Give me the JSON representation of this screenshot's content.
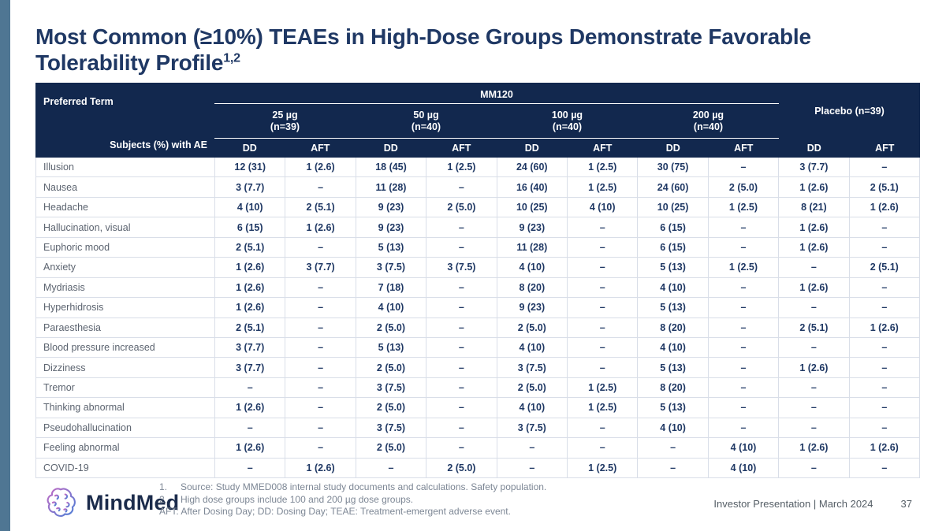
{
  "slide": {
    "title_line1": "Most Common (≥10%) TEAEs in High-Dose Groups Demonstrate Favorable",
    "title_line2": "Tolerability Profile",
    "title_superscript": "1,2"
  },
  "table": {
    "header": {
      "preferred_term_label": "Preferred Term",
      "subjects_label": "Subjects (%) with AE",
      "group_label": "MM120",
      "placebo_label": "Placebo (n=39)",
      "dose_groups": [
        {
          "dose": "25 µg",
          "n": "(n=39)"
        },
        {
          "dose": "50 µg",
          "n": "(n=40)"
        },
        {
          "dose": "100 µg",
          "n": "(n=40)"
        },
        {
          "dose": "200 µg",
          "n": "(n=40)"
        }
      ],
      "day_columns": [
        "DD",
        "AFT"
      ]
    },
    "rows": [
      {
        "term": "Illusion",
        "values": [
          "12 (31)",
          "1 (2.6)",
          "18 (45)",
          "1 (2.5)",
          "24 (60)",
          "1 (2.5)",
          "30 (75)",
          "–",
          "3 (7.7)",
          "–"
        ]
      },
      {
        "term": "Nausea",
        "values": [
          "3 (7.7)",
          "–",
          "11 (28)",
          "–",
          "16 (40)",
          "1 (2.5)",
          "24 (60)",
          "2 (5.0)",
          "1 (2.6)",
          "2 (5.1)"
        ]
      },
      {
        "term": "Headache",
        "values": [
          "4 (10)",
          "2 (5.1)",
          "9 (23)",
          "2 (5.0)",
          "10 (25)",
          "4 (10)",
          "10 (25)",
          "1 (2.5)",
          "8 (21)",
          "1 (2.6)"
        ]
      },
      {
        "term": "Hallucination, visual",
        "values": [
          "6 (15)",
          "1 (2.6)",
          "9 (23)",
          "–",
          "9 (23)",
          "–",
          "6 (15)",
          "–",
          "1 (2.6)",
          "–"
        ]
      },
      {
        "term": "Euphoric mood",
        "values": [
          "2 (5.1)",
          "–",
          "5 (13)",
          "–",
          "11 (28)",
          "–",
          "6 (15)",
          "–",
          "1 (2.6)",
          "–"
        ]
      },
      {
        "term": "Anxiety",
        "values": [
          "1 (2.6)",
          "3 (7.7)",
          "3 (7.5)",
          "3 (7.5)",
          "4 (10)",
          "–",
          "5 (13)",
          "1 (2.5)",
          "–",
          "2 (5.1)"
        ]
      },
      {
        "term": "Mydriasis",
        "values": [
          "1 (2.6)",
          "–",
          "7 (18)",
          "–",
          "8 (20)",
          "–",
          "4 (10)",
          "–",
          "1 (2.6)",
          "–"
        ]
      },
      {
        "term": "Hyperhidrosis",
        "values": [
          "1 (2.6)",
          "–",
          "4 (10)",
          "–",
          "9 (23)",
          "–",
          "5 (13)",
          "–",
          "–",
          "–"
        ]
      },
      {
        "term": "Paraesthesia",
        "values": [
          "2 (5.1)",
          "–",
          "2 (5.0)",
          "–",
          "2 (5.0)",
          "–",
          "8 (20)",
          "–",
          "2 (5.1)",
          "1 (2.6)"
        ]
      },
      {
        "term": "Blood pressure increased",
        "values": [
          "3 (7.7)",
          "–",
          "5 (13)",
          "–",
          "4 (10)",
          "–",
          "4 (10)",
          "–",
          "–",
          "–"
        ]
      },
      {
        "term": "Dizziness",
        "values": [
          "3 (7.7)",
          "–",
          "2 (5.0)",
          "–",
          "3 (7.5)",
          "–",
          "5 (13)",
          "–",
          "1 (2.6)",
          "–"
        ]
      },
      {
        "term": "Tremor",
        "values": [
          "–",
          "–",
          "3 (7.5)",
          "–",
          "2 (5.0)",
          "1 (2.5)",
          "8 (20)",
          "–",
          "–",
          "–"
        ]
      },
      {
        "term": "Thinking abnormal",
        "values": [
          "1 (2.6)",
          "–",
          "2 (5.0)",
          "–",
          "4 (10)",
          "1 (2.5)",
          "5 (13)",
          "–",
          "–",
          "–"
        ]
      },
      {
        "term": "Pseudohallucination",
        "values": [
          "–",
          "–",
          "3 (7.5)",
          "–",
          "3 (7.5)",
          "–",
          "4 (10)",
          "–",
          "–",
          "–"
        ]
      },
      {
        "term": "Feeling abnormal",
        "values": [
          "1 (2.6)",
          "–",
          "2 (5.0)",
          "–",
          "–",
          "–",
          "–",
          "4 (10)",
          "1 (2.6)",
          "1 (2.6)"
        ]
      },
      {
        "term": "COVID-19",
        "values": [
          "–",
          "1 (2.6)",
          "–",
          "2 (5.0)",
          "–",
          "1 (2.5)",
          "–",
          "4 (10)",
          "–",
          "–"
        ]
      }
    ]
  },
  "footnotes": {
    "items": [
      {
        "marker": "1.",
        "text": "Source: Study MMED008 internal study documents and calculations. Safety population."
      },
      {
        "marker": "2.",
        "text": "High dose groups include 100 and 200 µg dose groups."
      }
    ],
    "abbreviations": "AFT: After Dosing Day; DD: Dosing Day; TEAE: Treatment-emergent adverse event."
  },
  "footer": {
    "logo_text": "MindMed",
    "presentation_label": "Investor Presentation | March 2024",
    "page_number": "37"
  },
  "colors": {
    "header_navy": "#12284E",
    "title_navy": "#1F3864",
    "accent_bar_blue": "#4F7693",
    "value_navy": "#1F3864",
    "label_gray": "#5C6470",
    "grid_line": "#D9DEE8",
    "footnote_gray": "#7D8795",
    "logo_gradient_start": "#C06BC4",
    "logo_gradient_end": "#4D7FD6"
  }
}
